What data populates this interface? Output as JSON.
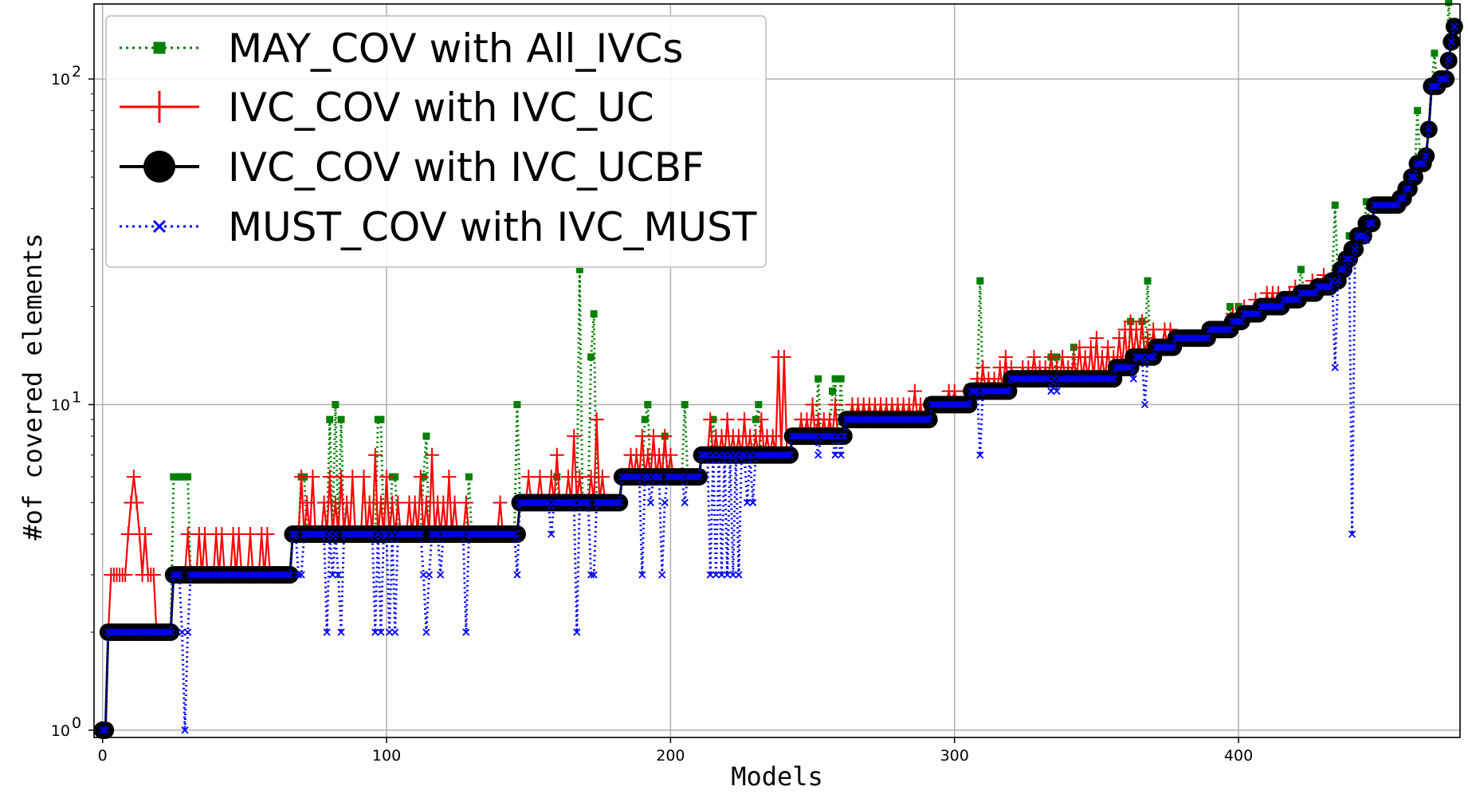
{
  "chart_data": {
    "type": "line",
    "xlabel": "Models",
    "ylabel": "#of covered elements",
    "yscale": "log",
    "xlim": [
      -3,
      478
    ],
    "ylim": [
      0.95,
      170
    ],
    "x_ticks": [
      0,
      100,
      200,
      300,
      400
    ],
    "y_ticks": [
      {
        "value": 1,
        "base": "10",
        "exp": "0"
      },
      {
        "value": 10,
        "base": "10",
        "exp": "1"
      },
      {
        "value": 100,
        "base": "10",
        "exp": "2"
      }
    ],
    "grid": true,
    "legend_position": "upper-left",
    "staircase": [
      [
        0,
        1
      ],
      [
        2,
        2
      ],
      [
        25,
        3
      ],
      [
        67,
        4
      ],
      [
        147,
        5
      ],
      [
        183,
        6
      ],
      [
        211,
        7
      ],
      [
        243,
        8
      ],
      [
        262,
        9
      ],
      [
        292,
        10
      ],
      [
        306,
        11
      ],
      [
        320,
        12
      ],
      [
        357,
        13
      ],
      [
        363,
        14
      ],
      [
        371,
        15
      ],
      [
        378,
        16
      ],
      [
        390,
        17
      ],
      [
        398,
        18
      ],
      [
        402,
        19
      ],
      [
        408,
        20
      ],
      [
        416,
        21
      ],
      [
        422,
        22
      ],
      [
        428,
        23
      ],
      [
        433,
        24
      ],
      [
        436,
        26
      ],
      [
        438,
        28
      ],
      [
        440,
        30
      ],
      [
        442,
        33
      ],
      [
        445,
        36
      ],
      [
        448,
        41
      ],
      [
        457,
        43
      ],
      [
        459,
        46
      ],
      [
        461,
        50
      ],
      [
        463,
        55
      ],
      [
        466,
        58
      ],
      [
        467,
        70
      ],
      [
        468,
        95
      ],
      [
        471,
        100
      ],
      [
        474,
        114
      ],
      [
        475,
        130
      ],
      [
        476,
        145
      ]
    ],
    "may_spikes": [
      [
        25,
        6
      ],
      [
        26,
        6
      ],
      [
        27,
        6
      ],
      [
        28,
        6
      ],
      [
        29,
        6
      ],
      [
        30,
        6
      ],
      [
        70,
        6
      ],
      [
        71,
        6
      ],
      [
        80,
        9
      ],
      [
        82,
        10
      ],
      [
        84,
        9
      ],
      [
        97,
        9
      ],
      [
        98,
        9
      ],
      [
        102,
        6
      ],
      [
        103,
        6
      ],
      [
        113,
        6
      ],
      [
        114,
        8
      ],
      [
        129,
        6
      ],
      [
        146,
        10
      ],
      [
        160,
        6
      ],
      [
        168,
        26
      ],
      [
        172,
        14
      ],
      [
        173,
        19
      ],
      [
        191,
        9
      ],
      [
        192,
        10
      ],
      [
        198,
        8
      ],
      [
        205,
        10
      ],
      [
        215,
        9
      ],
      [
        230,
        9
      ],
      [
        231,
        10
      ],
      [
        252,
        12
      ],
      [
        257,
        11
      ],
      [
        258,
        12
      ],
      [
        260,
        12
      ],
      [
        309,
        24
      ],
      [
        334,
        14
      ],
      [
        336,
        14
      ],
      [
        342,
        15
      ],
      [
        362,
        18
      ],
      [
        366,
        18
      ],
      [
        368,
        24
      ],
      [
        397,
        20
      ],
      [
        400,
        20
      ],
      [
        422,
        26
      ],
      [
        434,
        41
      ],
      [
        439,
        33
      ],
      [
        445,
        42
      ],
      [
        463,
        80
      ],
      [
        469,
        120
      ],
      [
        474,
        172
      ]
    ],
    "ivc_spikes": [
      [
        2,
        2
      ],
      [
        3,
        3
      ],
      [
        4,
        3
      ],
      [
        5,
        3
      ],
      [
        6,
        3
      ],
      [
        7,
        3
      ],
      [
        8,
        3
      ],
      [
        9,
        4
      ],
      [
        10,
        5
      ],
      [
        11,
        6
      ],
      [
        12,
        5
      ],
      [
        13,
        4
      ],
      [
        14,
        3
      ],
      [
        15,
        4
      ],
      [
        16,
        3
      ],
      [
        17,
        3
      ],
      [
        18,
        3
      ],
      [
        30,
        4
      ],
      [
        32,
        3
      ],
      [
        34,
        4
      ],
      [
        36,
        4
      ],
      [
        38,
        3
      ],
      [
        40,
        4
      ],
      [
        42,
        4
      ],
      [
        44,
        3
      ],
      [
        46,
        4
      ],
      [
        48,
        4
      ],
      [
        50,
        3
      ],
      [
        52,
        4
      ],
      [
        54,
        3
      ],
      [
        56,
        4
      ],
      [
        58,
        4
      ],
      [
        60,
        3
      ],
      [
        70,
        6
      ],
      [
        72,
        5
      ],
      [
        74,
        6
      ],
      [
        76,
        4
      ],
      [
        78,
        5
      ],
      [
        80,
        6
      ],
      [
        82,
        5
      ],
      [
        84,
        6
      ],
      [
        86,
        5
      ],
      [
        88,
        6
      ],
      [
        90,
        4
      ],
      [
        92,
        6
      ],
      [
        94,
        5
      ],
      [
        96,
        7
      ],
      [
        98,
        5
      ],
      [
        100,
        6
      ],
      [
        102,
        5
      ],
      [
        104,
        5
      ],
      [
        106,
        4
      ],
      [
        108,
        5
      ],
      [
        110,
        5
      ],
      [
        112,
        6
      ],
      [
        114,
        5
      ],
      [
        116,
        7
      ],
      [
        118,
        5
      ],
      [
        120,
        5
      ],
      [
        122,
        6
      ],
      [
        124,
        5
      ],
      [
        126,
        4
      ],
      [
        128,
        5
      ],
      [
        140,
        5
      ],
      [
        145,
        4
      ],
      [
        150,
        6
      ],
      [
        152,
        5
      ],
      [
        154,
        6
      ],
      [
        156,
        5
      ],
      [
        158,
        6
      ],
      [
        160,
        7
      ],
      [
        162,
        5
      ],
      [
        164,
        6
      ],
      [
        166,
        8
      ],
      [
        168,
        6
      ],
      [
        170,
        5
      ],
      [
        172,
        6
      ],
      [
        174,
        9
      ],
      [
        176,
        6
      ],
      [
        186,
        7
      ],
      [
        188,
        7
      ],
      [
        190,
        8
      ],
      [
        192,
        7
      ],
      [
        194,
        8
      ],
      [
        196,
        7
      ],
      [
        198,
        8
      ],
      [
        200,
        7
      ],
      [
        214,
        9
      ],
      [
        216,
        8
      ],
      [
        218,
        8
      ],
      [
        220,
        9
      ],
      [
        222,
        8
      ],
      [
        224,
        8
      ],
      [
        226,
        9
      ],
      [
        228,
        8
      ],
      [
        230,
        8
      ],
      [
        232,
        9
      ],
      [
        234,
        8
      ],
      [
        236,
        8
      ],
      [
        238,
        14
      ],
      [
        240,
        14
      ],
      [
        246,
        9
      ],
      [
        248,
        9
      ],
      [
        250,
        10
      ],
      [
        252,
        9
      ],
      [
        254,
        9
      ],
      [
        256,
        9
      ],
      [
        258,
        10
      ],
      [
        264,
        10
      ],
      [
        266,
        10
      ],
      [
        268,
        10
      ],
      [
        270,
        10
      ],
      [
        272,
        10
      ],
      [
        274,
        10
      ],
      [
        276,
        10
      ],
      [
        278,
        10
      ],
      [
        280,
        10
      ],
      [
        282,
        10
      ],
      [
        284,
        10
      ],
      [
        286,
        11
      ],
      [
        288,
        10
      ],
      [
        290,
        10
      ],
      [
        296,
        10
      ],
      [
        298,
        11
      ],
      [
        300,
        11
      ],
      [
        302,
        10
      ],
      [
        304,
        11
      ],
      [
        308,
        12
      ],
      [
        310,
        13
      ],
      [
        312,
        12
      ],
      [
        314,
        12
      ],
      [
        316,
        13
      ],
      [
        318,
        14
      ],
      [
        320,
        13
      ],
      [
        324,
        13
      ],
      [
        326,
        13
      ],
      [
        328,
        14
      ],
      [
        330,
        13
      ],
      [
        332,
        13
      ],
      [
        334,
        14
      ],
      [
        336,
        13
      ],
      [
        338,
        14
      ],
      [
        340,
        13
      ],
      [
        342,
        14
      ],
      [
        344,
        15
      ],
      [
        346,
        14
      ],
      [
        348,
        15
      ],
      [
        350,
        16
      ],
      [
        352,
        14
      ],
      [
        354,
        15
      ],
      [
        356,
        14
      ],
      [
        358,
        16
      ],
      [
        360,
        17
      ],
      [
        362,
        18
      ],
      [
        364,
        17
      ],
      [
        366,
        18
      ],
      [
        368,
        16
      ],
      [
        370,
        17
      ],
      [
        374,
        17
      ],
      [
        376,
        17
      ],
      [
        398,
        19
      ],
      [
        402,
        20
      ],
      [
        406,
        21
      ],
      [
        410,
        22
      ],
      [
        412,
        22
      ],
      [
        414,
        22
      ],
      [
        418,
        22
      ],
      [
        420,
        23
      ],
      [
        426,
        24
      ],
      [
        430,
        25
      ]
    ],
    "must_dips": [
      [
        28,
        2
      ],
      [
        29,
        1
      ],
      [
        30,
        2
      ],
      [
        69,
        3
      ],
      [
        70,
        3
      ],
      [
        79,
        2
      ],
      [
        81,
        3
      ],
      [
        83,
        3
      ],
      [
        84,
        2
      ],
      [
        96,
        2
      ],
      [
        98,
        2
      ],
      [
        101,
        2
      ],
      [
        103,
        2
      ],
      [
        113,
        3
      ],
      [
        114,
        2
      ],
      [
        115,
        3
      ],
      [
        119,
        3
      ],
      [
        128,
        2
      ],
      [
        146,
        3
      ],
      [
        158,
        4
      ],
      [
        167,
        2
      ],
      [
        172,
        3
      ],
      [
        173,
        3
      ],
      [
        190,
        3
      ],
      [
        193,
        5
      ],
      [
        197,
        3
      ],
      [
        198,
        5
      ],
      [
        205,
        5
      ],
      [
        214,
        3
      ],
      [
        216,
        3
      ],
      [
        218,
        3
      ],
      [
        220,
        3
      ],
      [
        222,
        3
      ],
      [
        224,
        3
      ],
      [
        227,
        5
      ],
      [
        229,
        5
      ],
      [
        252,
        7
      ],
      [
        258,
        7
      ],
      [
        260,
        7
      ],
      [
        309,
        7
      ],
      [
        334,
        11
      ],
      [
        336,
        11
      ],
      [
        363,
        12
      ],
      [
        367,
        10
      ],
      [
        434,
        13
      ],
      [
        440,
        4
      ],
      [
        445,
        32
      ]
    ],
    "series": [
      {
        "name": "MAY_COV with All_IVCs",
        "color": "#008000",
        "style": "dotted",
        "marker": "square"
      },
      {
        "name": "IVC_COV with IVC_UC",
        "color": "#ff0000",
        "style": "solid",
        "marker": "plus"
      },
      {
        "name": "IVC_COV with IVC_UCBF",
        "color": "#000000",
        "style": "solid",
        "marker": "circle"
      },
      {
        "name": "MUST_COV with IVC_MUST",
        "color": "#0000ff",
        "style": "dotted",
        "marker": "x"
      }
    ]
  }
}
